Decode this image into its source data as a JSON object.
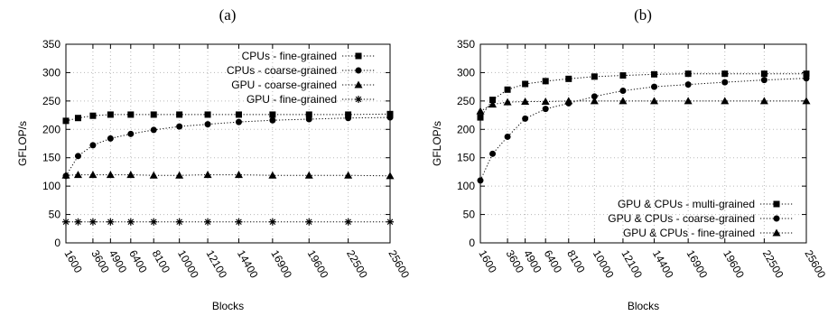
{
  "chart_data": [
    {
      "type": "line",
      "panel_label": "(a)",
      "xlabel": "Blocks",
      "ylabel": "GFLOP/s",
      "ylim": [
        0,
        350
      ],
      "yticks": [
        "0",
        "50",
        "100",
        "150",
        "200",
        "250",
        "300",
        "350"
      ],
      "x": [
        1600,
        2500,
        3600,
        4900,
        6400,
        8100,
        10000,
        12100,
        14400,
        16900,
        19600,
        22500,
        25600
      ],
      "xticks": [
        "1600",
        "3600",
        "4900",
        "6400",
        "8100",
        "10000",
        "12100",
        "14400",
        "16900",
        "19600",
        "22500",
        "25600"
      ],
      "grid": true,
      "legend_position": "top-right",
      "series": [
        {
          "name": "CPUs - fine-grained",
          "marker": "square",
          "values": [
            215,
            220,
            224,
            226,
            226,
            226,
            226,
            226,
            226,
            226,
            226,
            226,
            227
          ]
        },
        {
          "name": "CPUs - coarse-grained",
          "marker": "circle",
          "values": [
            118,
            153,
            172,
            184,
            192,
            199,
            205,
            209,
            213,
            216,
            218,
            220,
            221
          ]
        },
        {
          "name": "GPU - coarse-grained",
          "marker": "triangle",
          "values": [
            119,
            120,
            120,
            120,
            120,
            119,
            119,
            120,
            120,
            119,
            119,
            119,
            118
          ]
        },
        {
          "name": "GPU - fine-grained",
          "marker": "star",
          "values": [
            37,
            37,
            37,
            37,
            37,
            37,
            37,
            37,
            37,
            37,
            37,
            37,
            37
          ]
        }
      ]
    },
    {
      "type": "line",
      "panel_label": "(b)",
      "xlabel": "Blocks",
      "ylabel": "GFLOP/s",
      "ylim": [
        0,
        350
      ],
      "yticks": [
        "0",
        "50",
        "100",
        "150",
        "200",
        "250",
        "300",
        "350"
      ],
      "x": [
        1600,
        2500,
        3600,
        4900,
        6400,
        8100,
        10000,
        12100,
        14400,
        16900,
        19600,
        22500,
        25600
      ],
      "xticks": [
        "1600",
        "3600",
        "4900",
        "6400",
        "8100",
        "10000",
        "12100",
        "14400",
        "16900",
        "19600",
        "22500",
        "25600"
      ],
      "grid": true,
      "legend_position": "bottom-right",
      "series": [
        {
          "name": "GPU & CPUs - multi-grained",
          "marker": "square",
          "values": [
            221,
            252,
            270,
            280,
            285,
            289,
            293,
            295,
            297,
            298,
            298,
            298,
            298
          ]
        },
        {
          "name": "GPU & CPUs - coarse-grained",
          "marker": "circle",
          "values": [
            110,
            157,
            187,
            219,
            236,
            246,
            258,
            268,
            275,
            279,
            283,
            287,
            290
          ]
        },
        {
          "name": "GPU & CPUs - fine-grained",
          "marker": "triangle",
          "values": [
            232,
            244,
            248,
            249,
            249,
            250,
            250,
            250,
            250,
            250,
            250,
            250,
            250
          ]
        }
      ]
    }
  ]
}
